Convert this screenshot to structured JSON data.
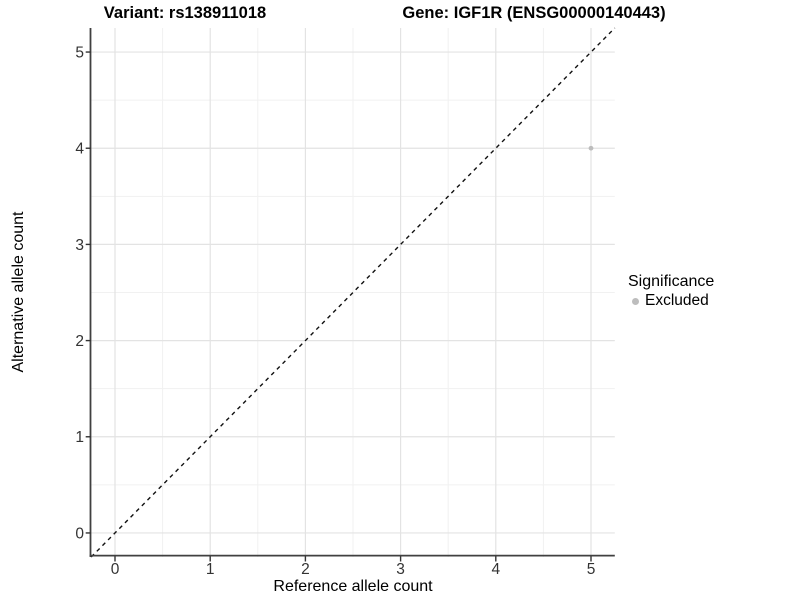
{
  "titles": {
    "variant": "Variant: rs138911018",
    "gene": "Gene: IGF1R (ENSG00000140443)"
  },
  "chart_data": {
    "type": "scatter",
    "titles": {
      "left": "Variant: rs138911018",
      "right": "Gene: IGF1R (ENSG00000140443)"
    },
    "xlabel": "Reference allele count",
    "ylabel": "Alternative allele count",
    "xlim": [
      -0.25,
      5.25
    ],
    "ylim": [
      -0.25,
      5.25
    ],
    "xticks": [
      0,
      1,
      2,
      3,
      4,
      5
    ],
    "yticks": [
      0,
      1,
      2,
      3,
      4,
      5
    ],
    "grid": {
      "major": true,
      "minor": true
    },
    "legend": {
      "title": "Significance",
      "position": "right",
      "items": [
        {
          "label": "Excluded",
          "color": "#bdbdbd"
        }
      ]
    },
    "series": [
      {
        "name": "Excluded",
        "color": "#bdbdbd",
        "point_radius": 2.4,
        "points": [
          {
            "x": 5,
            "y": 4
          }
        ]
      }
    ],
    "reference_line": {
      "description": "identity line y = x",
      "slope": 1,
      "intercept": 0,
      "style": "dashed",
      "color": "#111111"
    },
    "colors": {
      "background": "#ffffff",
      "grid_major": "#e3e3e3",
      "grid_minor": "#f1f1f1",
      "axis_line": "#404040",
      "tick_text": "#333333",
      "title_text": "#000000"
    }
  }
}
